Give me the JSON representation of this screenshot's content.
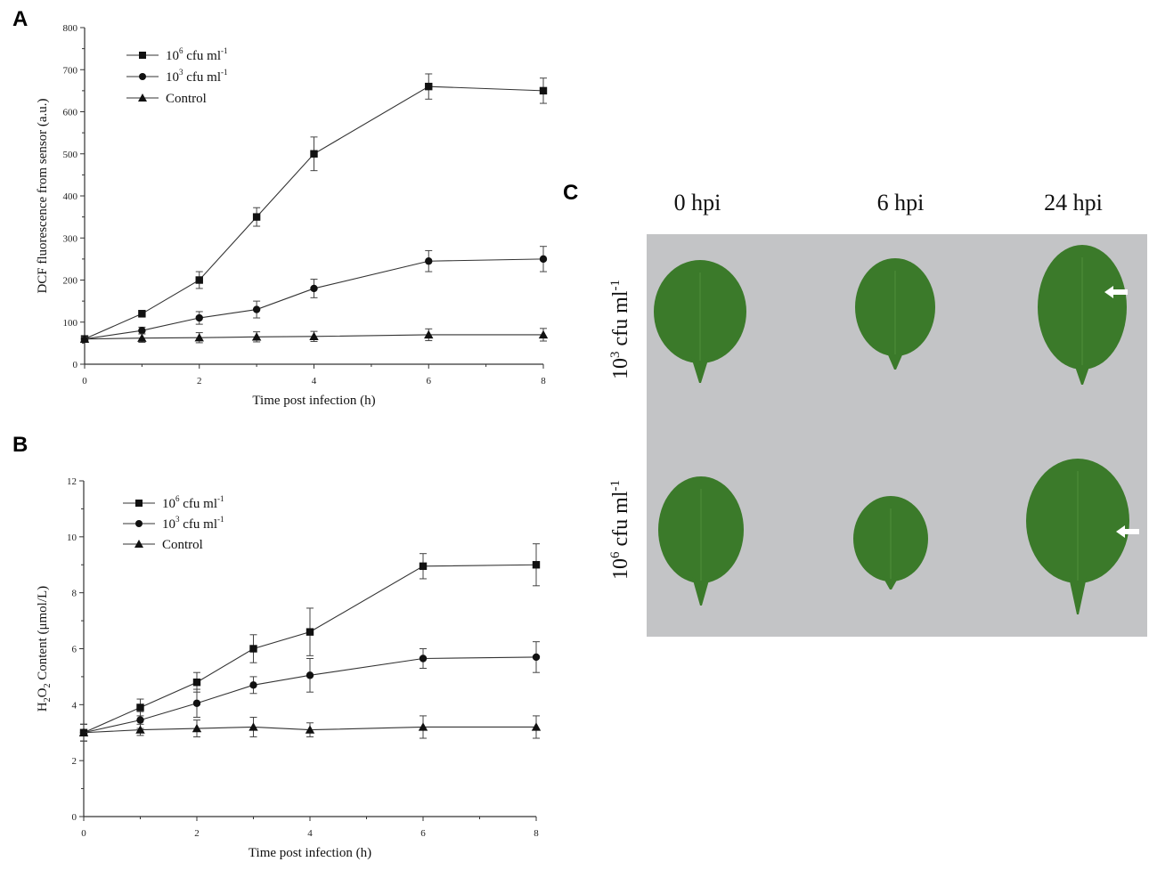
{
  "panels": {
    "a": "A",
    "b": "B",
    "c": "C"
  },
  "chart_data": [
    {
      "panel": "A",
      "type": "line",
      "xlabel": "Time post infection (h)",
      "ylabel": "DCF fluorescence from sensor (a.u.)",
      "xlim": [
        0,
        8
      ],
      "ylim": [
        0,
        800
      ],
      "xticks": [
        0,
        2,
        4,
        6,
        8
      ],
      "yticks": [
        0,
        100,
        200,
        300,
        400,
        500,
        600,
        700,
        800
      ],
      "legend_position": "top-left",
      "x": [
        0,
        1,
        2,
        3,
        4,
        6,
        8
      ],
      "series": [
        {
          "name": "10",
          "sup": "6",
          "unit": " cfu ml",
          "unit_sup": "-1",
          "marker": "square",
          "values": [
            60,
            120,
            200,
            350,
            500,
            660,
            650
          ],
          "errors": [
            5,
            8,
            20,
            22,
            40,
            30,
            30
          ]
        },
        {
          "name": "10",
          "sup": "3",
          "unit": " cfu ml",
          "unit_sup": "-1",
          "marker": "circle",
          "values": [
            60,
            80,
            110,
            130,
            180,
            245,
            250
          ],
          "errors": [
            5,
            8,
            15,
            20,
            22,
            25,
            30
          ]
        },
        {
          "name": "Control",
          "marker": "triangle",
          "values": [
            60,
            62,
            63,
            65,
            66,
            70,
            70
          ],
          "errors": [
            5,
            10,
            12,
            12,
            12,
            14,
            15
          ]
        }
      ]
    },
    {
      "panel": "B",
      "type": "line",
      "xlabel": "Time post infection (h)",
      "ylabel_parts": [
        "H",
        "2",
        "O",
        "2",
        " Content (μmol/L)"
      ],
      "xlim": [
        0,
        8
      ],
      "ylim": [
        0,
        12
      ],
      "xticks": [
        0,
        2,
        4,
        6,
        8
      ],
      "yticks": [
        0,
        2,
        4,
        6,
        8,
        10,
        12
      ],
      "legend_position": "top-left",
      "x": [
        0,
        1,
        2,
        3,
        4,
        6,
        8
      ],
      "series": [
        {
          "name": "10",
          "sup": "6",
          "unit": " cfu ml",
          "unit_sup": "-1",
          "marker": "square",
          "values": [
            3.0,
            3.9,
            4.8,
            6.0,
            6.6,
            8.95,
            9.0
          ],
          "errors": [
            0.3,
            0.3,
            0.35,
            0.5,
            0.85,
            0.45,
            0.75
          ]
        },
        {
          "name": "10",
          "sup": "3",
          "unit": " cfu ml",
          "unit_sup": "-1",
          "marker": "circle",
          "values": [
            3.0,
            3.45,
            4.05,
            4.7,
            5.05,
            5.65,
            5.7
          ],
          "errors": [
            0.3,
            0.3,
            0.5,
            0.3,
            0.6,
            0.35,
            0.55
          ]
        },
        {
          "name": "Control",
          "marker": "triangle",
          "values": [
            3.0,
            3.1,
            3.15,
            3.2,
            3.1,
            3.2,
            3.2
          ],
          "errors": [
            0.3,
            0.2,
            0.3,
            0.35,
            0.25,
            0.4,
            0.4
          ]
        }
      ]
    }
  ],
  "photo": {
    "headers": [
      "0 hpi",
      "6 hpi",
      "24 hpi"
    ],
    "rows": [
      {
        "base": "10",
        "sup": "3",
        "unit": " cfu ml",
        "unit_sup": "-1"
      },
      {
        "base": "10",
        "sup": "6",
        "unit": " cfu ml",
        "unit_sup": "-1"
      }
    ],
    "background_color": "#c3c4c6",
    "leaf_color": "#3b7a2a",
    "arrow_color": "#ffffff"
  }
}
